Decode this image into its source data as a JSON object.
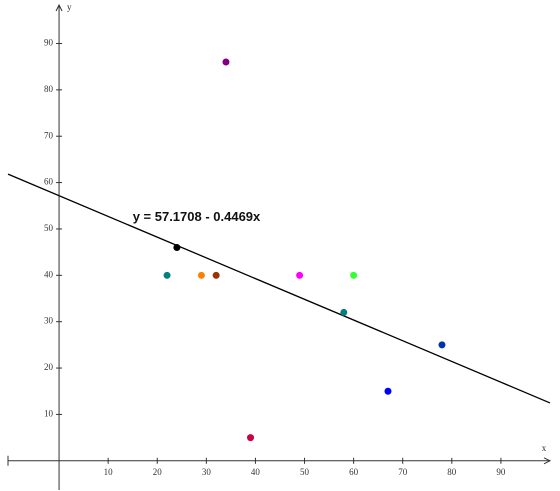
{
  "chart_data": {
    "type": "scatter",
    "x_label": "x",
    "y_label": "y",
    "x": [
      34,
      24,
      22,
      29,
      32,
      49,
      60,
      58,
      78,
      67,
      39
    ],
    "values": [
      86,
      46,
      40,
      40,
      40,
      40,
      40,
      32,
      25,
      15,
      5
    ],
    "colors": [
      "#800080",
      "#000000",
      "#008080",
      "#ff8000",
      "#993300",
      "#ff00ff",
      "#33ff33",
      "#008080",
      "#0033aa",
      "#0000ff",
      "#cc0044"
    ],
    "regression": {
      "label": "y = 57.1708 - 0.4469x",
      "intercept": 57.1708,
      "slope": -0.4469,
      "color": "#000000"
    },
    "xlim": [
      -10.4,
      100
    ],
    "ylim": [
      -6.3,
      98.3
    ],
    "xticks": [
      10,
      20,
      30,
      40,
      50,
      60,
      70,
      80,
      90
    ],
    "yticks": [
      10,
      20,
      30,
      40,
      50,
      60,
      70,
      80,
      90
    ]
  }
}
